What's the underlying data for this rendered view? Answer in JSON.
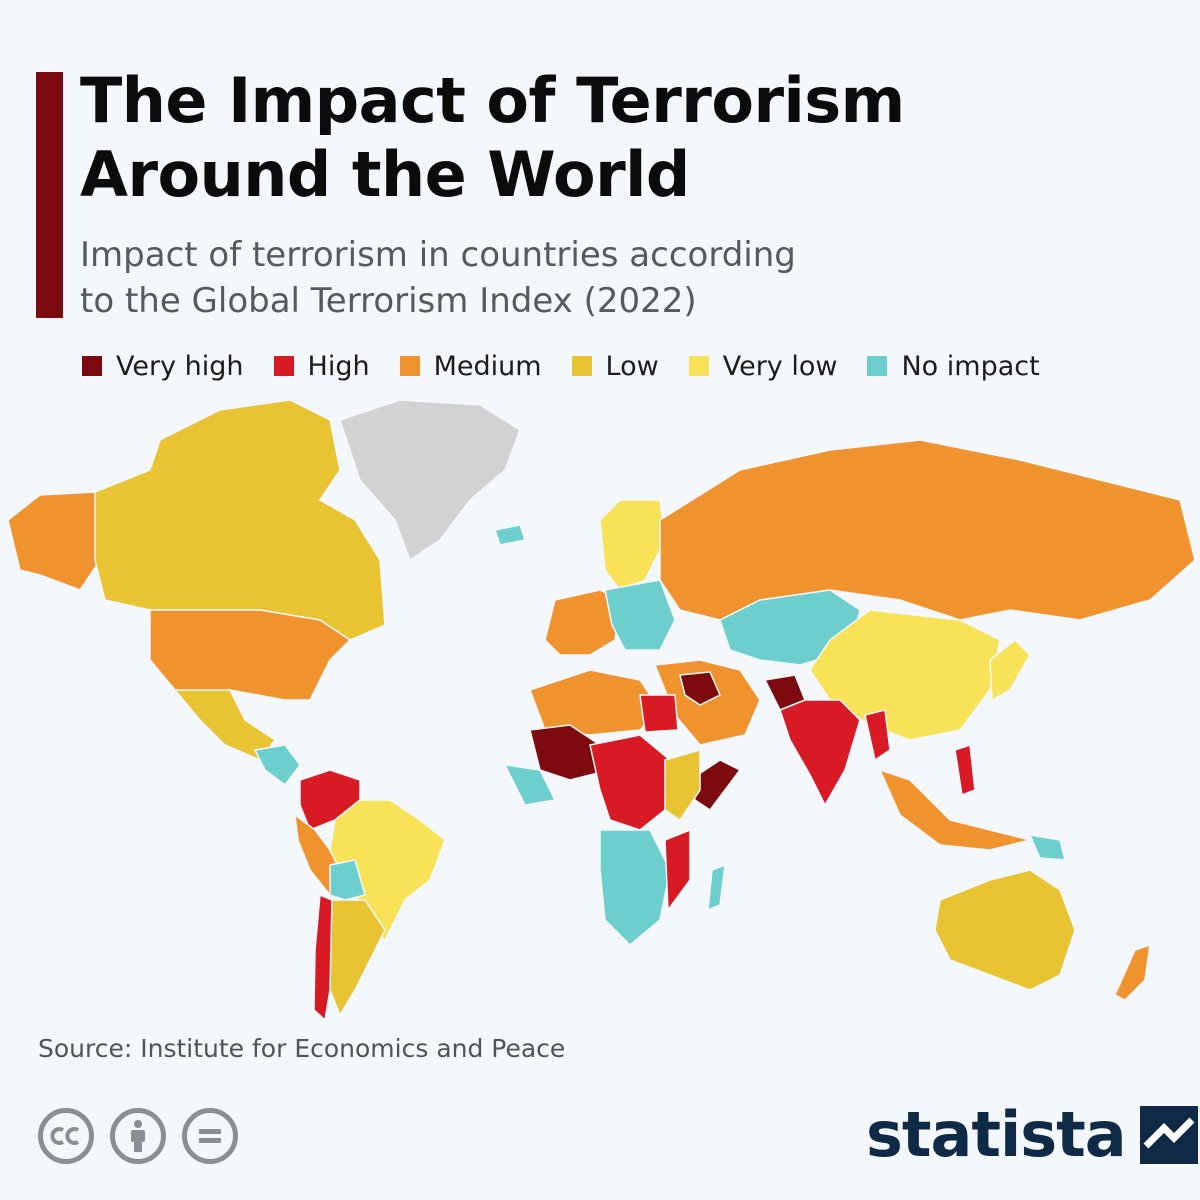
{
  "header": {
    "title_line1": "The Impact of Terrorism",
    "title_line2": "Around the World",
    "subtitle_line1": "Impact of terrorism in countries according",
    "subtitle_line2": "to the Global Terrorism Index (2022)"
  },
  "legend": [
    {
      "label": "Very high",
      "color": "#7c0a0e"
    },
    {
      "label": "High",
      "color": "#d71a24"
    },
    {
      "label": "Medium",
      "color": "#f0922e"
    },
    {
      "label": "Low",
      "color": "#e8c332"
    },
    {
      "label": "Very low",
      "color": "#f8e358"
    },
    {
      "label": "No impact",
      "color": "#6ccfce"
    }
  ],
  "no_data_color": "#d2d2d2",
  "source": "Source: Institute for Economics and Peace",
  "license_icons": [
    "cc-icon",
    "attribution-icon",
    "no-derivatives-icon"
  ],
  "logo": {
    "text": "statista",
    "color": "#0f2a47"
  }
}
